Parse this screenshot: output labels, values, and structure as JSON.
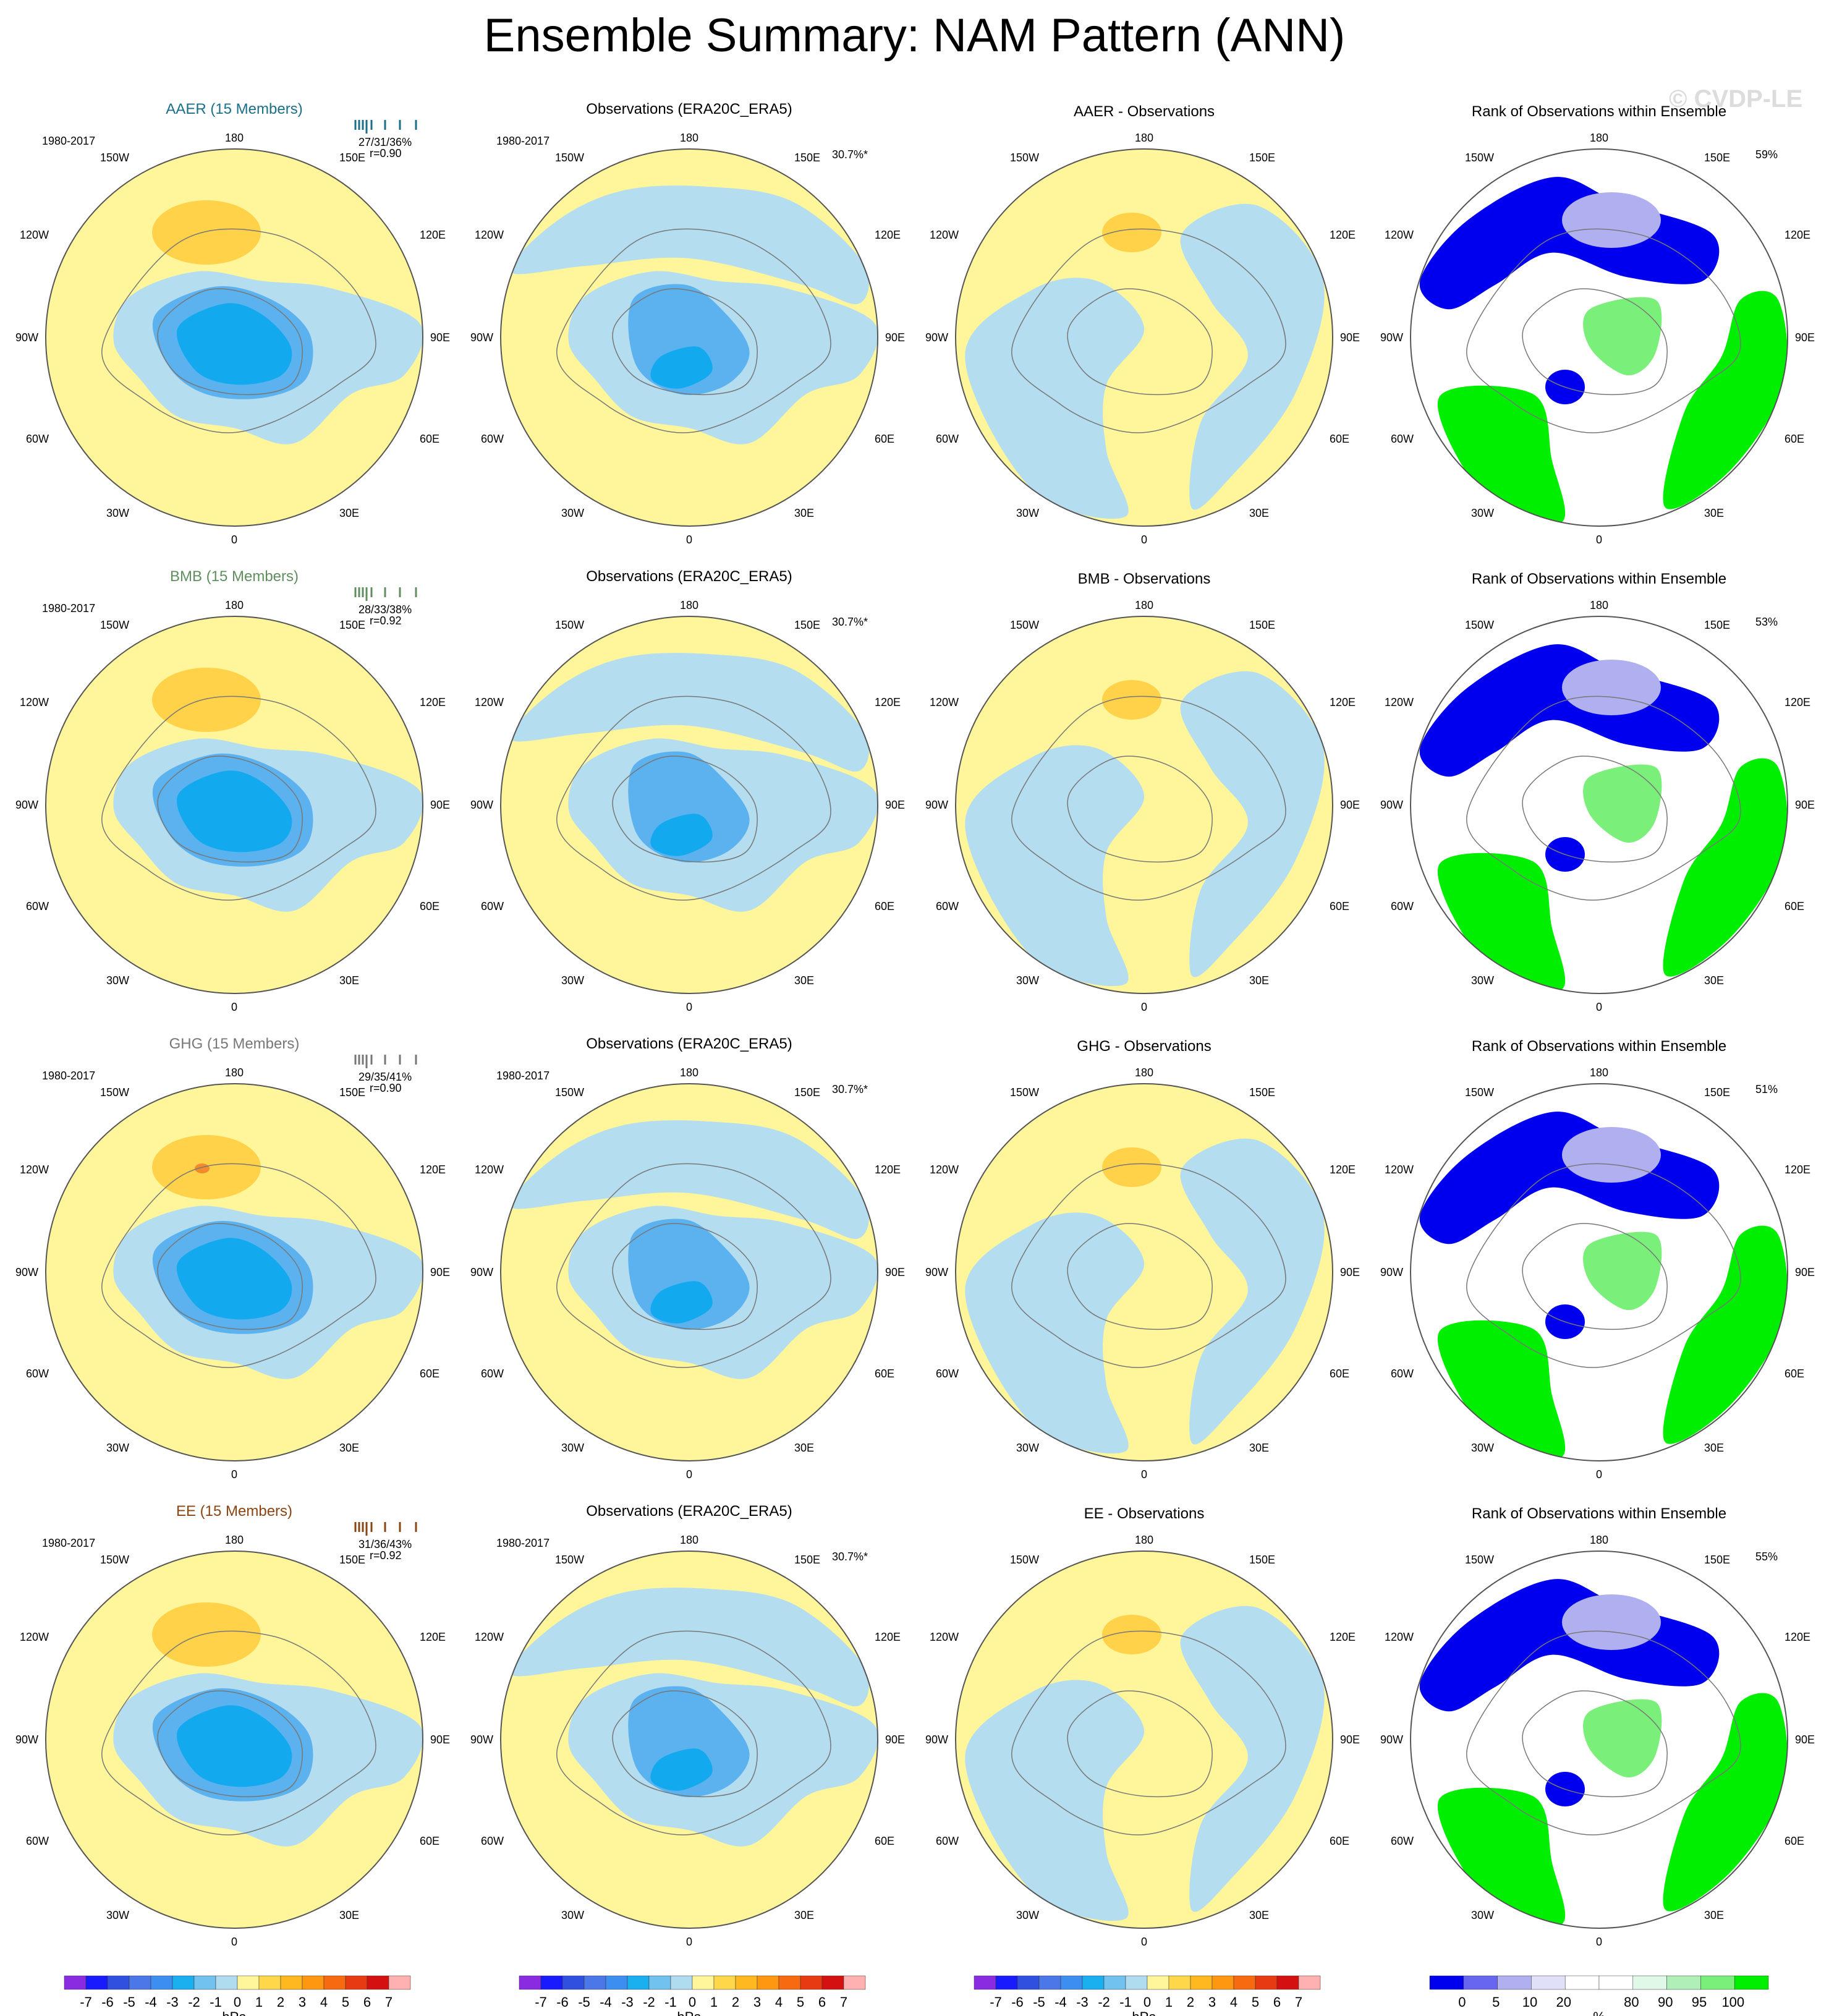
{
  "title": "Ensemble Summary: NAM Pattern (ANN)",
  "watermark": "© CVDP-LE",
  "lon_labels": {
    "top": "180",
    "bottom": "0",
    "upper_left": "150W",
    "upper_right": "150E",
    "mid_upper_left": "120W",
    "mid_upper_right": "120E",
    "left": "90W",
    "right": "90E",
    "mid_lower_left": "60W",
    "mid_lower_right": "60E",
    "lower_left": "30W",
    "lower_right": "30E"
  },
  "panel_titles": {
    "observations": "Observations (ERA20C_ERA5)",
    "rank": "Rank of Observations within Ensemble"
  },
  "rows": [
    {
      "model": "AAER",
      "model_title": "AAER (15 Members)",
      "model_color": "#1b6f8a",
      "period": "1980-2017",
      "obs_period": "1980-2017",
      "stats": "27/31/36%",
      "corr": "r=0.90",
      "obs_pct": "30.7%*",
      "diff_title": "AAER - Observations",
      "rank_pct": "59%"
    },
    {
      "model": "BMB",
      "model_title": "BMB (15 Members)",
      "model_color": "#5f8f5f",
      "period": "1980-2017",
      "obs_period": "",
      "stats": "28/33/38%",
      "corr": "r=0.92",
      "obs_pct": "30.7%*",
      "diff_title": "BMB - Observations",
      "rank_pct": "53%"
    },
    {
      "model": "GHG",
      "model_title": "GHG (15 Members)",
      "model_color": "#777777",
      "period": "1980-2017",
      "obs_period": "1980-2017",
      "stats": "29/35/41%",
      "corr": "r=0.90",
      "obs_pct": "30.7%*",
      "diff_title": "GHG - Observations",
      "rank_pct": "51%"
    },
    {
      "model": "EE",
      "model_title": "EE (15 Members)",
      "model_color": "#8b4513",
      "period": "1980-2017",
      "obs_period": "1980-2017",
      "stats": "31/36/43%",
      "corr": "r=0.92",
      "obs_pct": "30.7%*",
      "diff_title": "EE - Observations",
      "rank_pct": "55%"
    }
  ],
  "colorbar_hpa": {
    "colors": [
      "#8a2be2",
      "#1a1aff",
      "#3050e0",
      "#4a78e8",
      "#3c8ff0",
      "#1ab0f0",
      "#72c2f0",
      "#b0dcf0",
      "#fff59a",
      "#ffd84a",
      "#ffb820",
      "#ff9810",
      "#f86a10",
      "#e83a10",
      "#d51010",
      "#ffb0b0"
    ],
    "labels": [
      "-7",
      "-6",
      "-5",
      "-4",
      "-3",
      "-2",
      "-1",
      "0",
      "1",
      "2",
      "3",
      "4",
      "5",
      "6",
      "7"
    ],
    "unit": "hPa"
  },
  "colorbar_rank": {
    "colors": [
      "#0000ee",
      "#6666f0",
      "#b0b0f0",
      "#e0e0f8",
      "#ffffff",
      "#ffffff",
      "#e0f8e8",
      "#b0f0b8",
      "#7af07a",
      "#00ee00"
    ],
    "labels": [
      "0",
      "5",
      "10",
      "20",
      "80",
      "90",
      "95",
      "100"
    ],
    "unit": "%"
  },
  "chart_data": [
    {
      "type": "heatmap",
      "map_projection": "polar stereographic (Northern Hemisphere)",
      "panels": [
        "ensemble mean NAM pattern",
        "observed NAM pattern",
        "ensemble minus observations",
        "rank of observations within ensemble"
      ],
      "rows": [
        "AAER",
        "BMB",
        "GHG",
        "EE"
      ],
      "colorbar": [
        -7,
        -6,
        -5,
        -4,
        -3,
        -2,
        -1,
        0,
        1,
        2,
        3,
        4,
        5,
        6,
        7
      ],
      "unit": "hPa"
    },
    {
      "type": "heatmap",
      "colorbar": [
        0,
        5,
        10,
        20,
        80,
        90,
        95,
        100
      ],
      "unit": "%"
    }
  ]
}
